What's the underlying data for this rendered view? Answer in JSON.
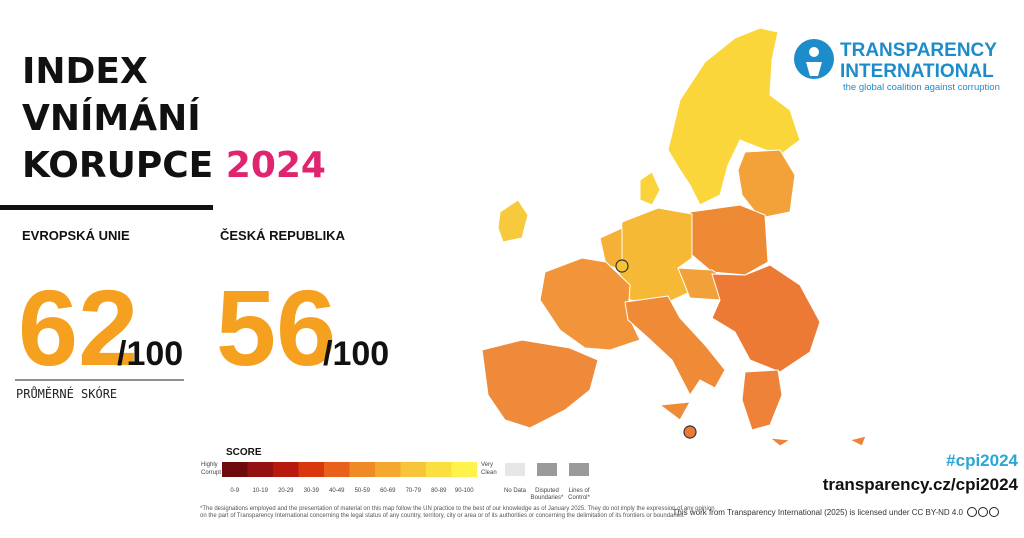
{
  "header": {
    "title_lines": [
      "INDEX",
      "VNÍMÁNÍ",
      "KORUPCE"
    ],
    "year": "2024"
  },
  "eu": {
    "label": "EVROPSKÁ UNIE",
    "score": "62",
    "max": "/100",
    "caption": "PRŮMĚRNÉ SKÓRE"
  },
  "cz": {
    "label": "ČESKÁ REPUBLIKA",
    "score": "56",
    "max": "/100"
  },
  "logo": {
    "name_lines": [
      "TRANSPARENCY",
      "INTERNATIONAL"
    ],
    "tagline": "the global coalition against corruption"
  },
  "legend": {
    "title": "SCORE",
    "low": [
      "Highly",
      "Corrupt"
    ],
    "high": [
      "Very",
      "Clean"
    ],
    "bins": [
      {
        "label": "0-9",
        "color": "#6e0a0c"
      },
      {
        "label": "10-19",
        "color": "#931110"
      },
      {
        "label": "20-29",
        "color": "#b8190f"
      },
      {
        "label": "30-39",
        "color": "#d9380f"
      },
      {
        "label": "40-49",
        "color": "#e8611b"
      },
      {
        "label": "50-59",
        "color": "#f08a26"
      },
      {
        "label": "60-69",
        "color": "#f4a830"
      },
      {
        "label": "70-79",
        "color": "#f8c53a"
      },
      {
        "label": "80-89",
        "color": "#fbdf40"
      },
      {
        "label": "90-100",
        "color": "#fff24a"
      }
    ],
    "extras": [
      [
        "No Data"
      ],
      [
        "Disputed",
        "Boundaries*"
      ],
      [
        "Lines of",
        "Control*"
      ]
    ]
  },
  "footer": {
    "hashtag": "#cpi2024",
    "url": "transparency.cz/cpi2024",
    "license": "This work from Transparency International (2025) is licensed under CC BY-ND 4.0",
    "disclaimer": [
      "*The designations employed and the presentation of material on this map follow the UN practice to the best of our knowledge as of January 2025. They do not imply the expression of any opinion",
      "on the part of Transparency International concerning the legal status of any country, territory, city or area or of its authorities or concerning the delimitation of its frontiers or boundaries."
    ]
  }
}
